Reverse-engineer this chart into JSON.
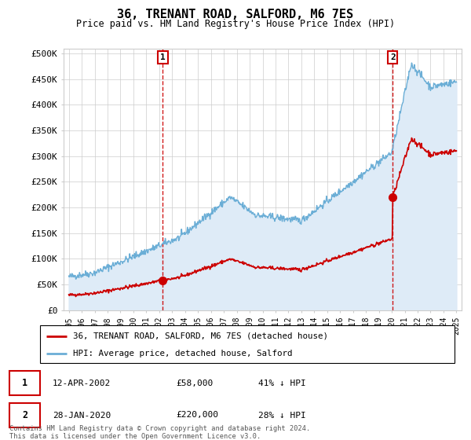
{
  "title": "36, TRENANT ROAD, SALFORD, M6 7ES",
  "subtitle": "Price paid vs. HM Land Registry's House Price Index (HPI)",
  "ylabel_ticks": [
    "£0",
    "£50K",
    "£100K",
    "£150K",
    "£200K",
    "£250K",
    "£300K",
    "£350K",
    "£400K",
    "£450K",
    "£500K"
  ],
  "ytick_values": [
    0,
    50000,
    100000,
    150000,
    200000,
    250000,
    300000,
    350000,
    400000,
    450000,
    500000
  ],
  "hpi_color": "#6baed6",
  "hpi_fill_color": "#deebf7",
  "price_color": "#cc0000",
  "marker_color": "#cc0000",
  "transaction1_year": 2002.28,
  "transaction1_price": 58000,
  "transaction2_year": 2020.07,
  "transaction2_price": 220000,
  "legend_line1": "36, TRENANT ROAD, SALFORD, M6 7ES (detached house)",
  "legend_line2": "HPI: Average price, detached house, Salford",
  "annotation1_date": "12-APR-2002",
  "annotation1_price": "£58,000",
  "annotation1_hpi": "41% ↓ HPI",
  "annotation2_date": "28-JAN-2020",
  "annotation2_price": "£220,000",
  "annotation2_hpi": "28% ↓ HPI",
  "footer": "Contains HM Land Registry data © Crown copyright and database right 2024.\nThis data is licensed under the Open Government Licence v3.0.",
  "xlim_start": 1994.6,
  "xlim_end": 2025.4,
  "ylim_min": 0,
  "ylim_max": 510000,
  "background_color": "#ffffff",
  "grid_color": "#cccccc"
}
